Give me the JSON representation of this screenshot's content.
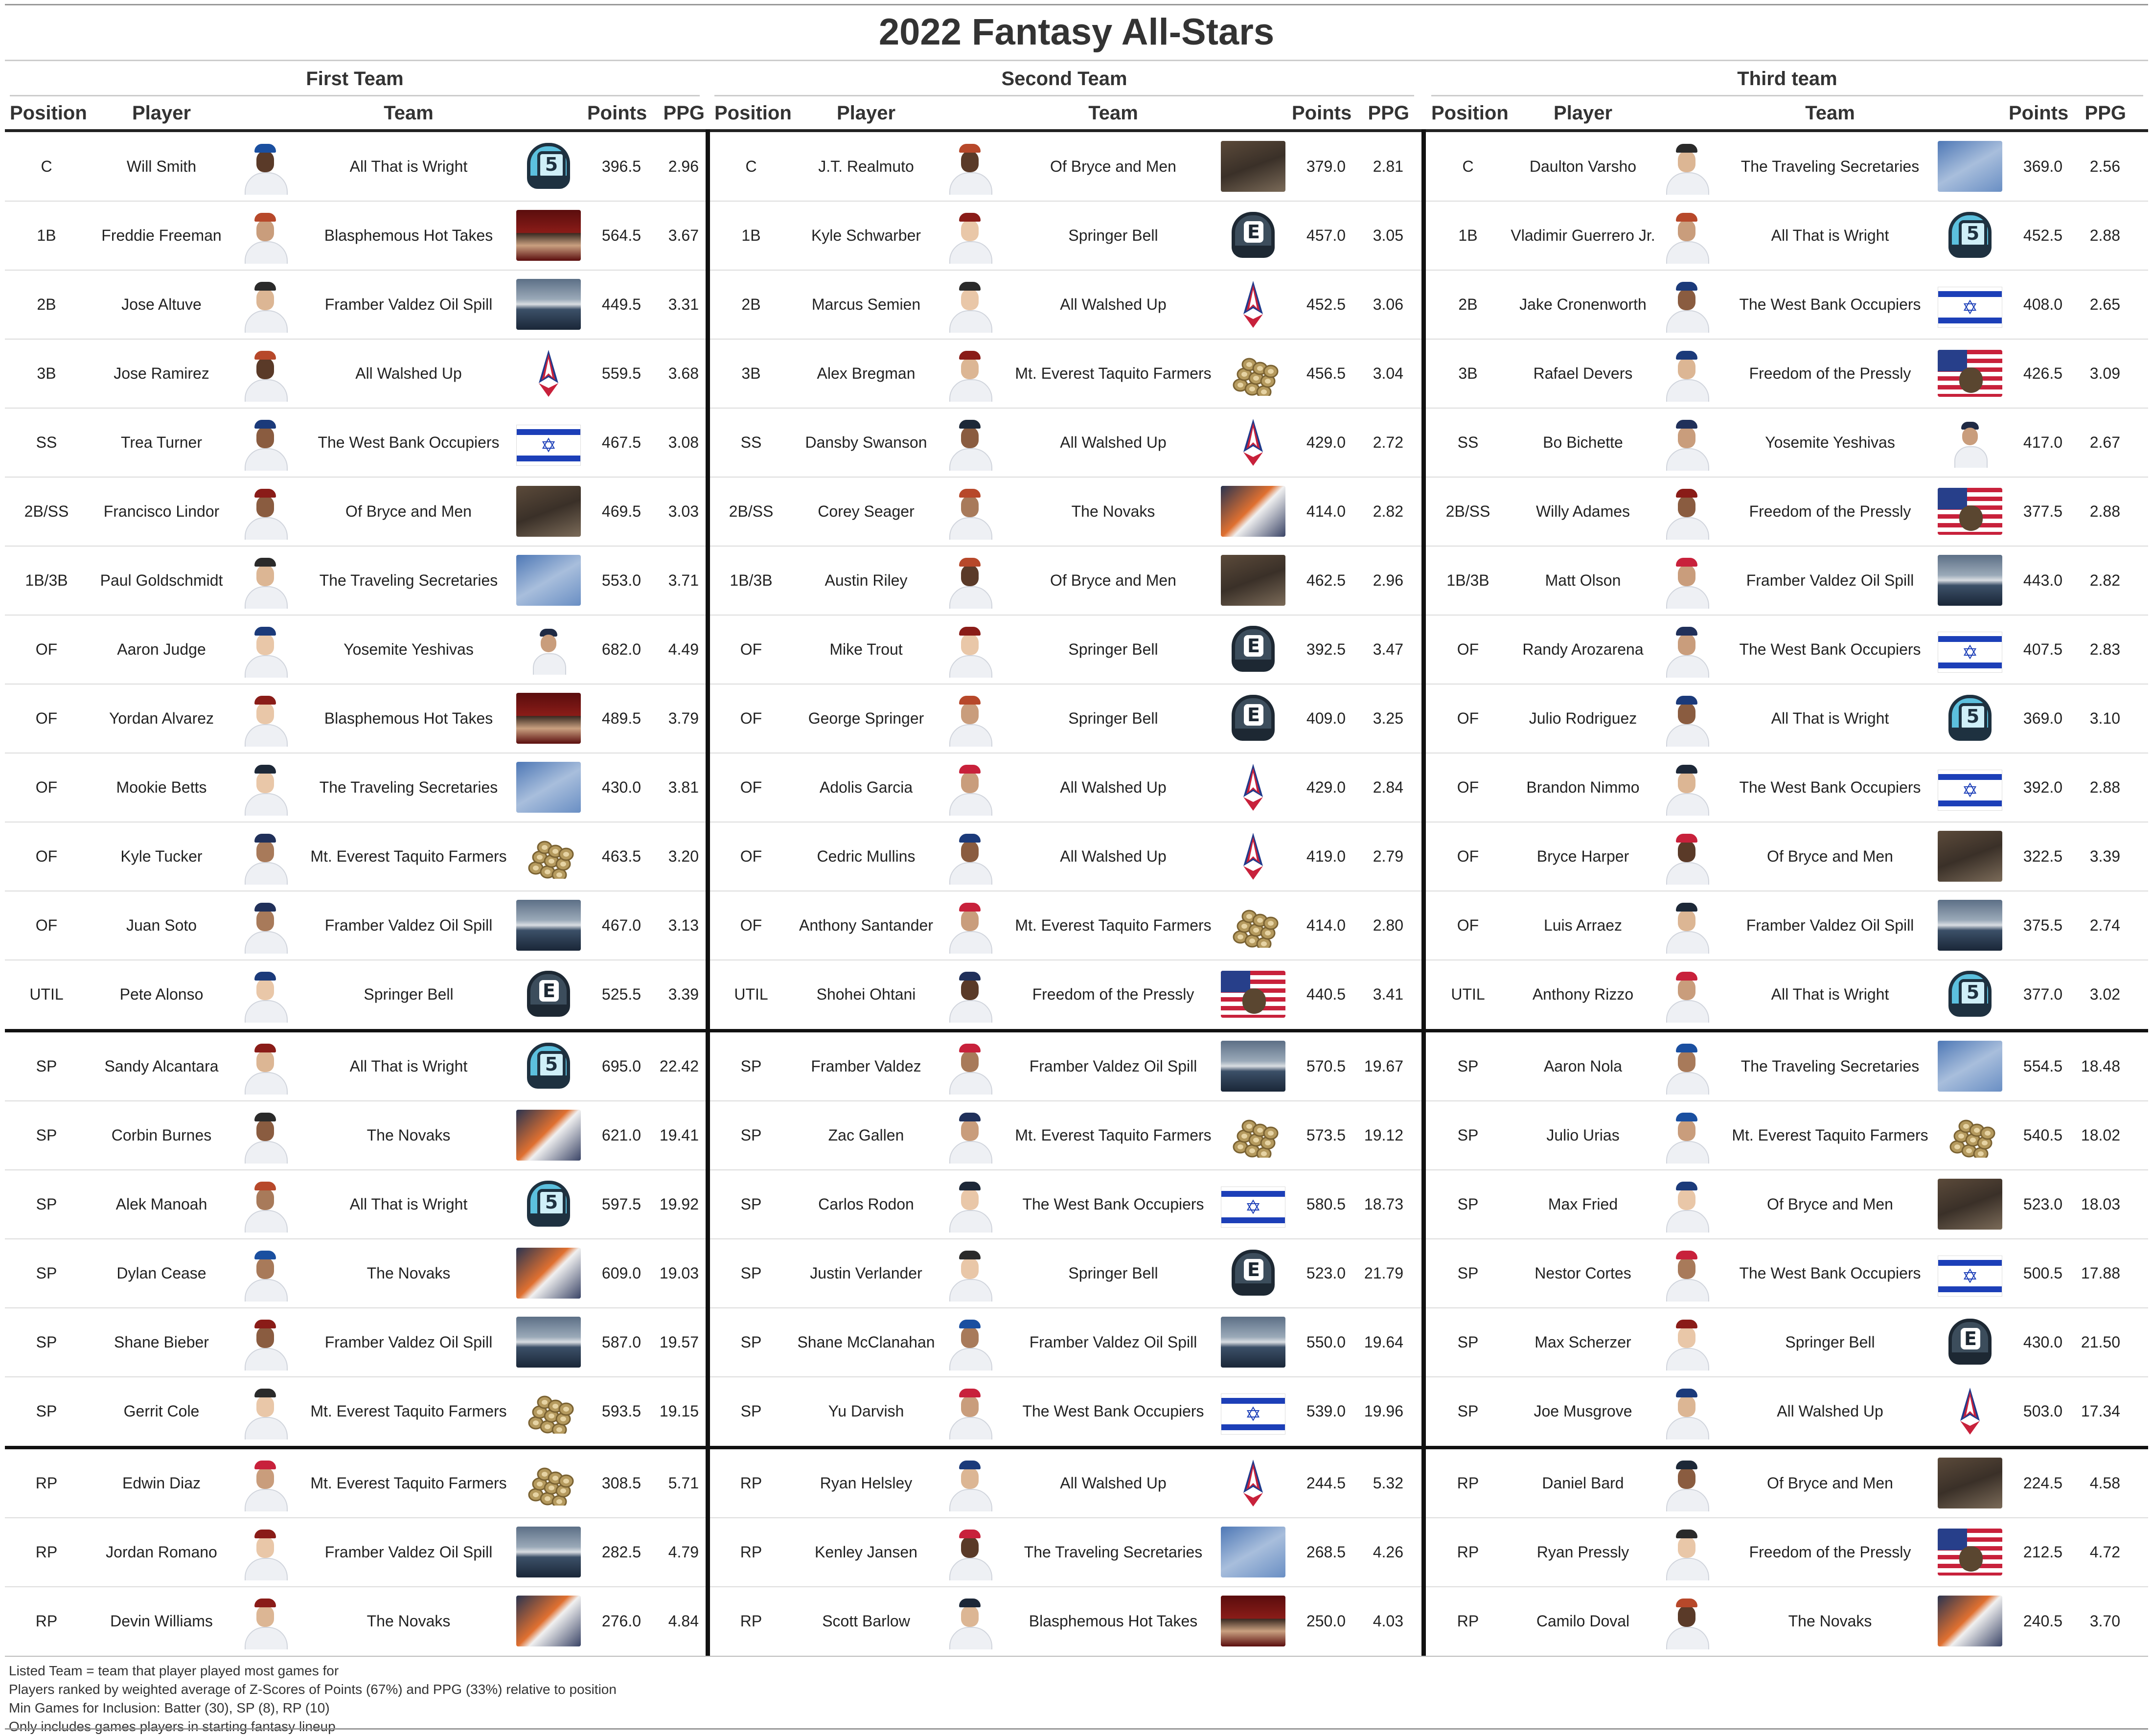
{
  "title": "2022 Fantasy All-Stars",
  "columns": {
    "position": "Position",
    "player": "Player",
    "team": "Team",
    "points": "Points",
    "ppg": "PPG"
  },
  "colors": {
    "all_that_is_wright": "#5cc0de",
    "springer_bell": "#3c4d5c",
    "all_walshed_up": "#c8213b",
    "west_bank_occupiers": "#1c3fb8",
    "freedom_of_the_pressly": "#273f8a"
  },
  "sections": [
    {
      "name": "First Team",
      "rows": [
        {
          "pos": "C",
          "player": "Will Smith",
          "team": "All That is Wright",
          "points": "396.5",
          "ppg": "2.96"
        },
        {
          "pos": "1B",
          "player": "Freddie Freeman",
          "team": "Blasphemous Hot Takes",
          "points": "564.5",
          "ppg": "3.67"
        },
        {
          "pos": "2B",
          "player": "Jose Altuve",
          "team": "Framber Valdez Oil Spill",
          "points": "449.5",
          "ppg": "3.31"
        },
        {
          "pos": "3B",
          "player": "Jose Ramirez",
          "team": "All Walshed Up",
          "points": "559.5",
          "ppg": "3.68"
        },
        {
          "pos": "SS",
          "player": "Trea Turner",
          "team": "The West Bank Occupiers",
          "points": "467.5",
          "ppg": "3.08"
        },
        {
          "pos": "2B/SS",
          "player": "Francisco Lindor",
          "team": "Of Bryce and Men",
          "points": "469.5",
          "ppg": "3.03"
        },
        {
          "pos": "1B/3B",
          "player": "Paul Goldschmidt",
          "team": "The Traveling Secretaries",
          "points": "553.0",
          "ppg": "3.71"
        },
        {
          "pos": "OF",
          "player": "Aaron Judge",
          "team": "Yosemite Yeshivas",
          "points": "682.0",
          "ppg": "4.49"
        },
        {
          "pos": "OF",
          "player": "Yordan Alvarez",
          "team": "Blasphemous Hot Takes",
          "points": "489.5",
          "ppg": "3.79"
        },
        {
          "pos": "OF",
          "player": "Mookie Betts",
          "team": "The Traveling Secretaries",
          "points": "430.0",
          "ppg": "3.81"
        },
        {
          "pos": "OF",
          "player": "Kyle Tucker",
          "team": "Mt. Everest Taquito Farmers",
          "points": "463.5",
          "ppg": "3.20"
        },
        {
          "pos": "OF",
          "player": "Juan Soto",
          "team": "Framber Valdez Oil Spill",
          "points": "467.0",
          "ppg": "3.13"
        },
        {
          "pos": "UTIL",
          "player": "Pete Alonso",
          "team": "Springer Bell",
          "points": "525.5",
          "ppg": "3.39"
        },
        {
          "pos": "SP",
          "player": "Sandy Alcantara",
          "team": "All That is Wright",
          "points": "695.0",
          "ppg": "22.42"
        },
        {
          "pos": "SP",
          "player": "Corbin Burnes",
          "team": "The Novaks",
          "points": "621.0",
          "ppg": "19.41"
        },
        {
          "pos": "SP",
          "player": "Alek Manoah",
          "team": "All That is Wright",
          "points": "597.5",
          "ppg": "19.92"
        },
        {
          "pos": "SP",
          "player": "Dylan Cease",
          "team": "The Novaks",
          "points": "609.0",
          "ppg": "19.03"
        },
        {
          "pos": "SP",
          "player": "Shane Bieber",
          "team": "Framber Valdez Oil Spill",
          "points": "587.0",
          "ppg": "19.57"
        },
        {
          "pos": "SP",
          "player": "Gerrit Cole",
          "team": "Mt. Everest Taquito Farmers",
          "points": "593.5",
          "ppg": "19.15"
        },
        {
          "pos": "RP",
          "player": "Edwin Diaz",
          "team": "Mt. Everest Taquito Farmers",
          "points": "308.5",
          "ppg": "5.71"
        },
        {
          "pos": "RP",
          "player": "Jordan Romano",
          "team": "Framber Valdez Oil Spill",
          "points": "282.5",
          "ppg": "4.79"
        },
        {
          "pos": "RP",
          "player": "Devin Williams",
          "team": "The Novaks",
          "points": "276.0",
          "ppg": "4.84"
        }
      ]
    },
    {
      "name": "Second Team",
      "rows": [
        {
          "pos": "C",
          "player": "J.T. Realmuto",
          "team": "Of Bryce and Men",
          "points": "379.0",
          "ppg": "2.81"
        },
        {
          "pos": "1B",
          "player": "Kyle Schwarber",
          "team": "Springer Bell",
          "points": "457.0",
          "ppg": "3.05"
        },
        {
          "pos": "2B",
          "player": "Marcus Semien",
          "team": "All Walshed Up",
          "points": "452.5",
          "ppg": "3.06"
        },
        {
          "pos": "3B",
          "player": "Alex Bregman",
          "team": "Mt. Everest Taquito Farmers",
          "points": "456.5",
          "ppg": "3.04"
        },
        {
          "pos": "SS",
          "player": "Dansby Swanson",
          "team": "All Walshed Up",
          "points": "429.0",
          "ppg": "2.72"
        },
        {
          "pos": "2B/SS",
          "player": "Corey Seager",
          "team": "The Novaks",
          "points": "414.0",
          "ppg": "2.82"
        },
        {
          "pos": "1B/3B",
          "player": "Austin Riley",
          "team": "Of Bryce and Men",
          "points": "462.5",
          "ppg": "2.96"
        },
        {
          "pos": "OF",
          "player": "Mike Trout",
          "team": "Springer Bell",
          "points": "392.5",
          "ppg": "3.47"
        },
        {
          "pos": "OF",
          "player": "George Springer",
          "team": "Springer Bell",
          "points": "409.0",
          "ppg": "3.25"
        },
        {
          "pos": "OF",
          "player": "Adolis Garcia",
          "team": "All Walshed Up",
          "points": "429.0",
          "ppg": "2.84"
        },
        {
          "pos": "OF",
          "player": "Cedric Mullins",
          "team": "All Walshed Up",
          "points": "419.0",
          "ppg": "2.79"
        },
        {
          "pos": "OF",
          "player": "Anthony Santander",
          "team": "Mt. Everest Taquito Farmers",
          "points": "414.0",
          "ppg": "2.80"
        },
        {
          "pos": "UTIL",
          "player": "Shohei Ohtani",
          "team": "Freedom of the Pressly",
          "points": "440.5",
          "ppg": "3.41"
        },
        {
          "pos": "SP",
          "player": "Framber Valdez",
          "team": "Framber Valdez Oil Spill",
          "points": "570.5",
          "ppg": "19.67"
        },
        {
          "pos": "SP",
          "player": "Zac Gallen",
          "team": "Mt. Everest Taquito Farmers",
          "points": "573.5",
          "ppg": "19.12"
        },
        {
          "pos": "SP",
          "player": "Carlos Rodon",
          "team": "The West Bank Occupiers",
          "points": "580.5",
          "ppg": "18.73"
        },
        {
          "pos": "SP",
          "player": "Justin Verlander",
          "team": "Springer Bell",
          "points": "523.0",
          "ppg": "21.79"
        },
        {
          "pos": "SP",
          "player": "Shane McClanahan",
          "team": "Framber Valdez Oil Spill",
          "points": "550.0",
          "ppg": "19.64"
        },
        {
          "pos": "SP",
          "player": "Yu Darvish",
          "team": "The West Bank Occupiers",
          "points": "539.0",
          "ppg": "19.96"
        },
        {
          "pos": "RP",
          "player": "Ryan Helsley",
          "team": "All Walshed Up",
          "points": "244.5",
          "ppg": "5.32"
        },
        {
          "pos": "RP",
          "player": "Kenley Jansen",
          "team": "The Traveling Secretaries",
          "points": "268.5",
          "ppg": "4.26"
        },
        {
          "pos": "RP",
          "player": "Scott Barlow",
          "team": "Blasphemous Hot Takes",
          "points": "250.0",
          "ppg": "4.03"
        }
      ]
    },
    {
      "name": "Third team",
      "rows": [
        {
          "pos": "C",
          "player": "Daulton Varsho",
          "team": "The Traveling Secretaries",
          "points": "369.0",
          "ppg": "2.56"
        },
        {
          "pos": "1B",
          "player": "Vladimir Guerrero Jr.",
          "team": "All That is Wright",
          "points": "452.5",
          "ppg": "2.88"
        },
        {
          "pos": "2B",
          "player": "Jake Cronenworth",
          "team": "The West Bank Occupiers",
          "points": "408.0",
          "ppg": "2.65"
        },
        {
          "pos": "3B",
          "player": "Rafael Devers",
          "team": "Freedom of the Pressly",
          "points": "426.5",
          "ppg": "3.09"
        },
        {
          "pos": "SS",
          "player": "Bo Bichette",
          "team": "Yosemite Yeshivas",
          "points": "417.0",
          "ppg": "2.67"
        },
        {
          "pos": "2B/SS",
          "player": "Willy Adames",
          "team": "Freedom of the Pressly",
          "points": "377.5",
          "ppg": "2.88"
        },
        {
          "pos": "1B/3B",
          "player": "Matt Olson",
          "team": "Framber Valdez Oil Spill",
          "points": "443.0",
          "ppg": "2.82"
        },
        {
          "pos": "OF",
          "player": "Randy Arozarena",
          "team": "The West Bank Occupiers",
          "points": "407.5",
          "ppg": "2.83"
        },
        {
          "pos": "OF",
          "player": "Julio Rodriguez",
          "team": "All That is Wright",
          "points": "369.0",
          "ppg": "3.10"
        },
        {
          "pos": "OF",
          "player": "Brandon Nimmo",
          "team": "The West Bank Occupiers",
          "points": "392.0",
          "ppg": "2.88"
        },
        {
          "pos": "OF",
          "player": "Bryce Harper",
          "team": "Of Bryce and Men",
          "points": "322.5",
          "ppg": "3.39"
        },
        {
          "pos": "OF",
          "player": "Luis Arraez",
          "team": "Framber Valdez Oil Spill",
          "points": "375.5",
          "ppg": "2.74"
        },
        {
          "pos": "UTIL",
          "player": "Anthony Rizzo",
          "team": "All That is Wright",
          "points": "377.0",
          "ppg": "3.02"
        },
        {
          "pos": "SP",
          "player": "Aaron Nola",
          "team": "The Traveling Secretaries",
          "points": "554.5",
          "ppg": "18.48"
        },
        {
          "pos": "SP",
          "player": "Julio Urias",
          "team": "Mt. Everest Taquito Farmers",
          "points": "540.5",
          "ppg": "18.02"
        },
        {
          "pos": "SP",
          "player": "Max Fried",
          "team": "Of Bryce and Men",
          "points": "523.0",
          "ppg": "18.03"
        },
        {
          "pos": "SP",
          "player": "Nestor Cortes",
          "team": "The West Bank Occupiers",
          "points": "500.5",
          "ppg": "17.88"
        },
        {
          "pos": "SP",
          "player": "Max Scherzer",
          "team": "Springer Bell",
          "points": "430.0",
          "ppg": "21.50"
        },
        {
          "pos": "SP",
          "player": "Joe Musgrove",
          "team": "All Walshed Up",
          "points": "503.0",
          "ppg": "17.34"
        },
        {
          "pos": "RP",
          "player": "Daniel Bard",
          "team": "Of Bryce and Men",
          "points": "224.5",
          "ppg": "4.58"
        },
        {
          "pos": "RP",
          "player": "Ryan Pressly",
          "team": "Freedom of the Pressly",
          "points": "212.5",
          "ppg": "4.72"
        },
        {
          "pos": "RP",
          "player": "Camilo Doval",
          "team": "The Novaks",
          "points": "240.5",
          "ppg": "3.70"
        }
      ]
    }
  ],
  "footnotes": [
    "Listed Team = team that player played most games for",
    "Players ranked by weighted average of Z-Scores of Points (67%) and PPG (33%) relative to position",
    "Min Games for Inclusion: Batter (30), SP (8), RP (10)",
    "Only includes games players in starting fantasy lineup"
  ]
}
